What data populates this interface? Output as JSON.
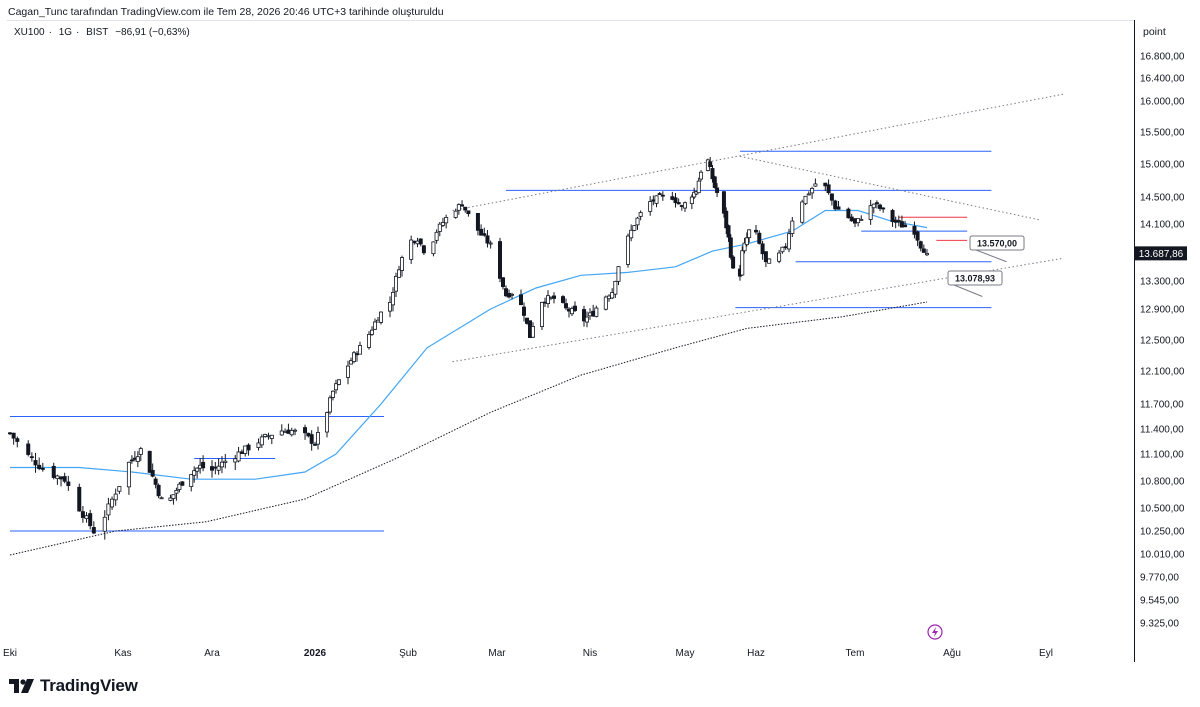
{
  "header": {
    "caption": "Cagan_Tunc tarafından TradingView.com ile Tem 28, 2026 20:46 UTC+3 tarihinde oluşturuldu"
  },
  "symbol": {
    "name": "XU100",
    "interval": "1G",
    "exchange": "BIST",
    "change": "−86,91 (−0,63%)"
  },
  "axis": {
    "unit": "point",
    "last_price_label": "13.687,86"
  },
  "brand": {
    "name": "TradingView"
  },
  "colors": {
    "up": "#ffffff",
    "down": "#131722",
    "wick": "#131722",
    "level_line": "#2962ff",
    "ma50": "#42a5f5",
    "ma200": "#131722",
    "trendline": "#787b86",
    "last_price_badge": "#131722",
    "lightning": "#9c27b0"
  },
  "chart_data": {
    "type": "candlestick",
    "symbol": "XU100",
    "interval": "1G",
    "exchange": "BIST",
    "ylabel": "point",
    "ylim": [
      9200,
      16900
    ],
    "x_tick_labels": [
      "Eki",
      "Kas",
      "Ara",
      "2026",
      "Şub",
      "Mar",
      "Nis",
      "May",
      "Haz",
      "Tem",
      "Ağu",
      "Eyl"
    ],
    "y_tick_labels": [
      "16.800,00",
      "16.400,00",
      "16.000,00",
      "15.500,00",
      "15.000,00",
      "14.500,00",
      "14.100,00",
      "13.300,00",
      "12.900,00",
      "12.500,00",
      "12.100,00",
      "11.700,00",
      "11.400,00",
      "11.100,00",
      "10.800,00",
      "10.500,00",
      "10.250,00",
      "10.010,00",
      "9.770,00",
      "9.545,00",
      "9.325,00"
    ],
    "y_tick_values": [
      16800,
      16400,
      16000,
      15500,
      15000,
      14500,
      14100,
      13300,
      12900,
      12500,
      12100,
      11700,
      11400,
      11100,
      10800,
      10500,
      10250,
      10010,
      9770,
      9545,
      9325
    ],
    "x_tick_days": [
      1,
      32,
      62,
      93,
      124,
      152,
      183,
      213,
      244,
      274,
      305,
      336
    ],
    "close_path": [
      [
        1,
        11350
      ],
      [
        6,
        11080
      ],
      [
        11,
        10900
      ],
      [
        16,
        10820
      ],
      [
        20,
        10500
      ],
      [
        24,
        10250
      ],
      [
        27,
        10420
      ],
      [
        30,
        10680
      ],
      [
        34,
        11000
      ],
      [
        38,
        11150
      ],
      [
        42,
        10850
      ],
      [
        46,
        10500
      ],
      [
        50,
        10700
      ],
      [
        54,
        10880
      ],
      [
        58,
        10960
      ],
      [
        62,
        10920
      ],
      [
        66,
        11020
      ],
      [
        70,
        11110
      ],
      [
        74,
        11200
      ],
      [
        78,
        11300
      ],
      [
        82,
        11380
      ],
      [
        86,
        11380
      ],
      [
        90,
        11320
      ],
      [
        93,
        11230
      ],
      [
        96,
        11500
      ],
      [
        99,
        11850
      ],
      [
        102,
        12050
      ],
      [
        106,
        12300
      ],
      [
        110,
        12500
      ],
      [
        114,
        12800
      ],
      [
        118,
        13000
      ],
      [
        121,
        13500
      ],
      [
        124,
        13850
      ],
      [
        127,
        13900
      ],
      [
        130,
        13650
      ],
      [
        133,
        14000
      ],
      [
        137,
        14250
      ],
      [
        141,
        14400
      ],
      [
        144,
        14150
      ],
      [
        147,
        13950
      ],
      [
        150,
        13800
      ],
      [
        152,
        13500
      ],
      [
        155,
        13100
      ],
      [
        158,
        13150
      ],
      [
        161,
        12850
      ],
      [
        163,
        12550
      ],
      [
        166,
        13000
      ],
      [
        169,
        13050
      ],
      [
        172,
        13050
      ],
      [
        175,
        12900
      ],
      [
        178,
        12850
      ],
      [
        181,
        12760
      ],
      [
        184,
        12850
      ],
      [
        187,
        13050
      ],
      [
        190,
        13150
      ],
      [
        193,
        13700
      ],
      [
        197,
        14100
      ],
      [
        201,
        14400
      ],
      [
        205,
        14500
      ],
      [
        209,
        14500
      ],
      [
        212,
        14350
      ],
      [
        215,
        14500
      ],
      [
        218,
        14600
      ],
      [
        220,
        14900
      ],
      [
        223,
        15050
      ],
      [
        226,
        14650
      ],
      [
        229,
        14400
      ],
      [
        232,
        13900
      ],
      [
        234,
        13450
      ],
      [
        236,
        13100
      ],
      [
        238,
        13700
      ],
      [
        241,
        14000
      ],
      [
        244,
        13950
      ],
      [
        247,
        13550
      ],
      [
        250,
        13600
      ],
      [
        253,
        13800
      ],
      [
        256,
        14350
      ],
      [
        259,
        14500
      ],
      [
        262,
        14700
      ],
      [
        265,
        14650
      ],
      [
        268,
        14350
      ],
      [
        271,
        14250
      ],
      [
        274,
        14100
      ],
      [
        277,
        14250
      ],
      [
        280,
        14400
      ],
      [
        283,
        14300
      ],
      [
        286,
        14150
      ],
      [
        289,
        14080
      ],
      [
        291,
        14050
      ],
      [
        293,
        14000
      ],
      [
        295,
        13800
      ],
      [
        297,
        13688
      ]
    ],
    "last_close": 13687.86,
    "ma_50": [
      [
        1,
        10950
      ],
      [
        20,
        10950
      ],
      [
        35,
        10900
      ],
      [
        55,
        10820
      ],
      [
        75,
        10820
      ],
      [
        90,
        10900
      ],
      [
        100,
        11100
      ],
      [
        115,
        11700
      ],
      [
        130,
        12400
      ],
      [
        150,
        12900
      ],
      [
        165,
        13200
      ],
      [
        180,
        13380
      ],
      [
        195,
        13420
      ],
      [
        210,
        13500
      ],
      [
        225,
        13720
      ],
      [
        240,
        13820
      ],
      [
        255,
        14000
      ],
      [
        265,
        14300
      ],
      [
        275,
        14300
      ],
      [
        285,
        14150
      ],
      [
        297,
        14050
      ]
    ],
    "ma_200": [
      [
        1,
        10000
      ],
      [
        30,
        10250
      ],
      [
        60,
        10350
      ],
      [
        90,
        10600
      ],
      [
        120,
        11050
      ],
      [
        150,
        11600
      ],
      [
        180,
        12050
      ],
      [
        210,
        12400
      ],
      [
        240,
        12650
      ],
      [
        270,
        12800
      ],
      [
        297,
        13000
      ]
    ],
    "horizontal_levels": [
      {
        "from_day": 1,
        "to_day": 116,
        "value": 11550
      },
      {
        "from_day": 1,
        "to_day": 116,
        "value": 10250
      },
      {
        "from_day": 56,
        "to_day": 81,
        "value": 11050
      },
      {
        "from_day": 155,
        "to_day": 318,
        "value": 14600
      },
      {
        "from_day": 237,
        "to_day": 318,
        "value": 15200
      },
      {
        "from_day": 235,
        "to_day": 318,
        "value": 12920
      },
      {
        "from_day": 256,
        "to_day": 318,
        "value": 13570
      },
      {
        "from_day": 276,
        "to_day": 310,
        "value": 14000
      },
      {
        "from_day": 288,
        "to_day": 310,
        "value": 14200,
        "color": "red"
      },
      {
        "from_day": 300,
        "to_day": 310,
        "value": 13870,
        "color": "red"
      }
    ],
    "trendlines": [
      {
        "from": [
          138,
          14300
        ],
        "to": [
          342,
          16120
        ]
      },
      {
        "from": [
          138,
          12220
        ],
        "to": [
          342,
          13620
        ]
      },
      {
        "from": [
          237,
          15120
        ],
        "to": [
          334,
          14160
        ]
      }
    ],
    "callouts": [
      {
        "label": "13.570,00",
        "value": 13570,
        "day": 323
      },
      {
        "label": "13.078,93",
        "value": 13078.93,
        "day": 315
      }
    ]
  }
}
